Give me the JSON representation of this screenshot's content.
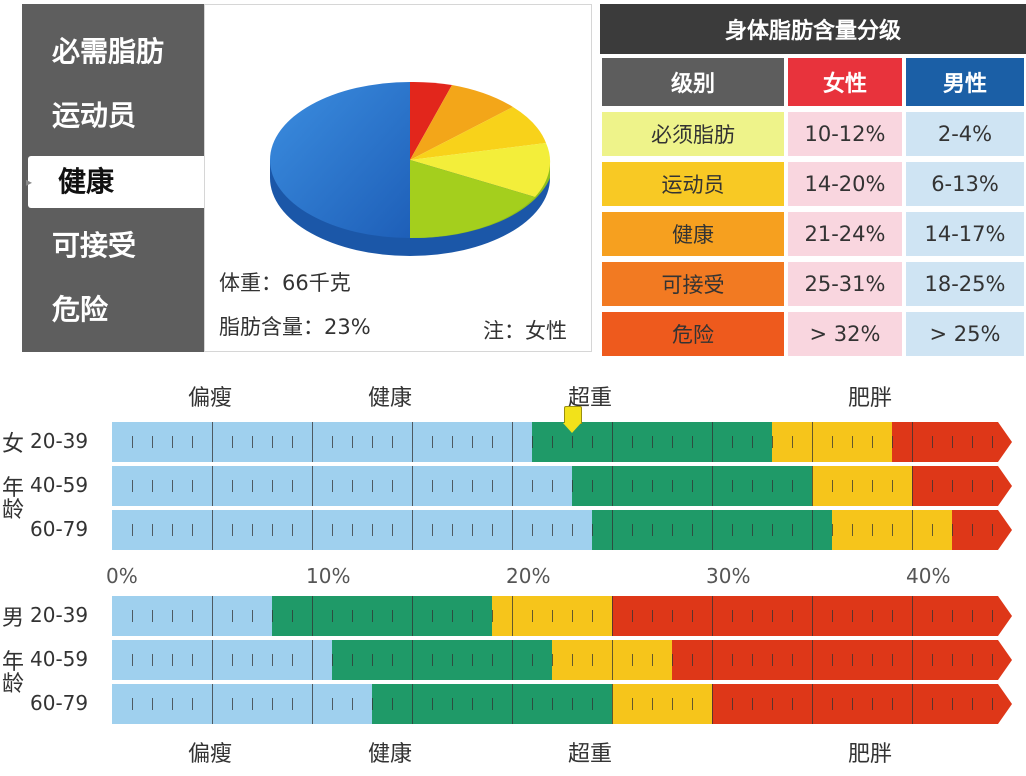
{
  "menu": {
    "items": [
      "必需脂肪",
      "运动员",
      "健康",
      "可接受",
      "危险"
    ],
    "active_index": 2
  },
  "pie_panel": {
    "weight_label": "体重：66千克",
    "fat_label": "脂肪含量：23%",
    "note_label": "注：女性"
  },
  "table": {
    "title": "身体脂肪含量分级",
    "headers": {
      "level": "级别",
      "female": "女性",
      "male": "男性"
    },
    "header_colors": {
      "level": "#5d5d5d",
      "female": "#e8333c",
      "male": "#1b5fa6"
    },
    "rows": [
      {
        "level": "必须脂肪",
        "female": "10-12%",
        "male": "2-4%",
        "color": "#eef38a"
      },
      {
        "level": "运动员",
        "female": "14-20%",
        "male": "6-13%",
        "color": "#f8c924"
      },
      {
        "level": "健康",
        "female": "21-24%",
        "male": "14-17%",
        "color": "#f6a01f"
      },
      {
        "level": "可接受",
        "female": "25-31%",
        "male": "18-25%",
        "color": "#f27a22"
      },
      {
        "level": "危险",
        "female": "> 32%",
        "male": "> 25%",
        "color": "#ee5a1d"
      }
    ],
    "female_cell_color": "#f9d6df",
    "male_cell_color": "#cfe4f3"
  },
  "chart_data": {
    "type": "bar",
    "title": "",
    "xlabel": "",
    "ylabel": "",
    "xlim": [
      0,
      45
    ],
    "x_ticks": [
      "0%",
      "10%",
      "20%",
      "30%",
      "40%"
    ],
    "x_tick_values": [
      0,
      10,
      20,
      30,
      40
    ],
    "category_labels": [
      "偏瘦",
      "健康",
      "超重",
      "肥胖"
    ],
    "category_colors": [
      "#9fd0ee",
      "#1f9a68",
      "#f6c51b",
      "#de3718"
    ],
    "female": {
      "label": "女",
      "age_side_label": "年龄",
      "rows": [
        {
          "age": "20-39",
          "bounds": [
            21,
            33,
            39
          ]
        },
        {
          "age": "40-59",
          "bounds": [
            23,
            35,
            40
          ]
        },
        {
          "age": "60-79",
          "bounds": [
            24,
            36,
            42
          ]
        }
      ],
      "marker_value": 23
    },
    "male": {
      "label": "男",
      "age_side_label": "年龄",
      "rows": [
        {
          "age": "20-39",
          "bounds": [
            8,
            19,
            25
          ]
        },
        {
          "age": "40-59",
          "bounds": [
            11,
            22,
            28
          ]
        },
        {
          "age": "60-79",
          "bounds": [
            13,
            25,
            30
          ]
        }
      ]
    },
    "marker_color": "#f2e21a"
  }
}
